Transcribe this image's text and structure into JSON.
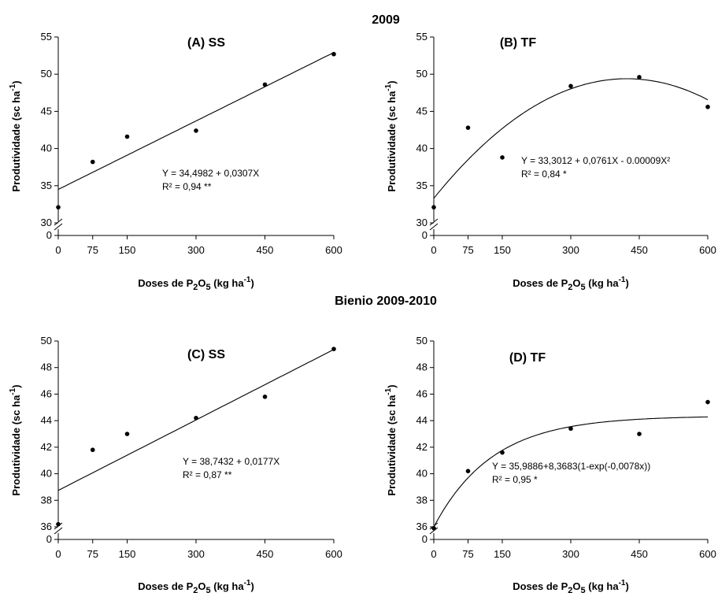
{
  "sections": [
    "2009",
    "Bienio 2009-2010"
  ],
  "chart_data": [
    {
      "type": "scatter",
      "title": "(A)  SS",
      "section": "2009",
      "xlabel": "Doses de P2O5 (kg ha-1)",
      "ylabel": "Produtividade (sc ha-1)",
      "x_ticks": [
        0,
        75,
        150,
        300,
        450,
        600
      ],
      "y_ticks": [
        30,
        35,
        40,
        45,
        50,
        55
      ],
      "ylim": [
        30,
        55
      ],
      "y_break": true,
      "x": [
        0,
        75,
        150,
        300,
        450,
        600
      ],
      "y": [
        32.1,
        38.2,
        41.6,
        42.4,
        48.6,
        52.7
      ],
      "fit": {
        "model": "linear",
        "coef": [
          34.4982,
          0.0307
        ]
      },
      "equation": "Y = 34,4982 + 0,0307X",
      "r2": "R² = 0,94 **"
    },
    {
      "type": "scatter",
      "title": "(B)  TF",
      "section": "2009",
      "xlabel": "Doses de P2O5 (kg ha-1)",
      "ylabel": "Produtividade (sc ha-1)",
      "x_ticks": [
        0,
        75,
        150,
        300,
        450,
        600
      ],
      "y_ticks": [
        30,
        35,
        40,
        45,
        50,
        55
      ],
      "ylim": [
        30,
        55
      ],
      "y_break": true,
      "x": [
        0,
        75,
        150,
        300,
        450,
        600
      ],
      "y": [
        32.1,
        42.8,
        38.8,
        48.4,
        49.6,
        45.6
      ],
      "fit": {
        "model": "quadratic",
        "coef": [
          33.3012,
          0.0761,
          -9e-05
        ]
      },
      "equation": "Y = 33,3012 + 0,0761X - 0.00009X²",
      "r2": "R² = 0,84 *"
    },
    {
      "type": "scatter",
      "title": "(C)  SS",
      "section": "Bienio 2009-2010",
      "xlabel": "Doses de P2O5 (kg ha-1)",
      "ylabel": "Produtividade (sc ha-1)",
      "x_ticks": [
        0,
        75,
        150,
        300,
        450,
        600
      ],
      "y_ticks": [
        36,
        38,
        40,
        42,
        44,
        46,
        48,
        50
      ],
      "ylim": [
        36,
        50
      ],
      "y_break": true,
      "x": [
        0,
        75,
        150,
        300,
        450,
        600
      ],
      "y": [
        36.2,
        41.8,
        43.0,
        44.2,
        45.8,
        49.4
      ],
      "fit": {
        "model": "linear",
        "coef": [
          38.7432,
          0.0177
        ]
      },
      "equation": "Y = 38,7432 + 0,0177X",
      "r2": "R² = 0,87 **"
    },
    {
      "type": "scatter",
      "title": "(D)  TF",
      "section": "Bienio 2009-2010",
      "xlabel": "Doses de P2O5 (kg ha-1)",
      "ylabel": "Produtividade (sc ha-1)",
      "x_ticks": [
        0,
        75,
        150,
        300,
        450,
        600
      ],
      "y_ticks": [
        36,
        38,
        40,
        42,
        44,
        46,
        48,
        50
      ],
      "ylim": [
        36,
        50
      ],
      "y_break": true,
      "x": [
        0,
        75,
        150,
        300,
        450,
        600
      ],
      "y": [
        35.9,
        40.2,
        41.6,
        43.4,
        43.0,
        45.4
      ],
      "fit": {
        "model": "exponential",
        "coef": [
          35.9886,
          8.3683,
          0.0078
        ]
      },
      "equation": "Y = 35,9886+8,3683(1-exp(-0,0078x))",
      "r2": "R² = 0,95 *"
    }
  ]
}
